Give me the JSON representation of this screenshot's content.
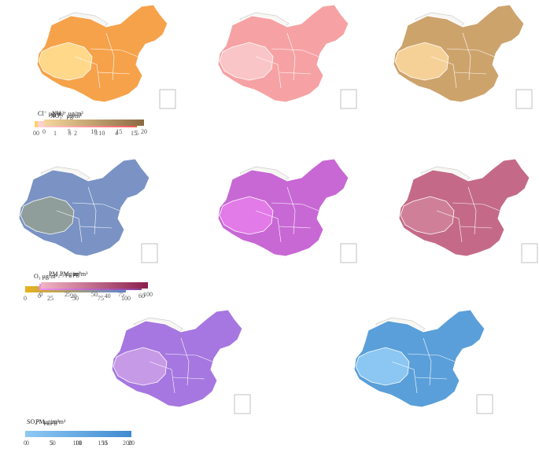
{
  "panels": [
    {
      "id": "cl",
      "title": "Cl⁻ μg/m³",
      "gradient": [
        "#ffd36e",
        "#f06421"
      ],
      "fill": "#f6a24a",
      "west": "#ffd88a",
      "ticks": [
        "0",
        "1",
        "2",
        "3",
        "4",
        "5"
      ]
    },
    {
      "id": "nh4",
      "title": "NH₄⁺ μg/m³",
      "gradient": [
        "#ffd4d4",
        "#f25a5e"
      ],
      "fill": "#f6a2a4",
      "west": "#fac5c6",
      "ticks": [
        "0",
        "5",
        "10",
        "15"
      ]
    },
    {
      "id": "no3",
      "title": "NO₃⁻ μg/m³",
      "gradient": [
        "#f5d79a",
        "#8b6a44"
      ],
      "fill": "#cda36c",
      "west": "#f5d198",
      "ticks": [
        "0",
        "5",
        "10",
        "15",
        "20"
      ]
    },
    {
      "id": "o3",
      "title": "O₃ μg/m³",
      "gradient": [
        "#e8b31c",
        "#5e87d8"
      ],
      "fill": "#7a93c4",
      "west": "#8f9e9a",
      "ticks": [
        "0",
        "25",
        "50",
        "75",
        "100"
      ]
    },
    {
      "id": "pm1",
      "title": "PM₁ μg/m³",
      "gradient": [
        "#f08ef5",
        "#8a3e9a"
      ],
      "fill": "#c868d4",
      "west": "#e27ae8",
      "ticks": [
        "0",
        "20",
        "40",
        "60"
      ]
    },
    {
      "id": "pm25",
      "title": "PM₂.₅ μg/m³",
      "gradient": [
        "#f3b5c6",
        "#8a1e4e"
      ],
      "fill": "#c46a88",
      "west": "#cf8098",
      "ticks": [
        "0",
        "25",
        "50",
        "75",
        "100"
      ]
    },
    {
      "id": "pm10",
      "title": "PM₁₀ μg/m³",
      "gradient": [
        "#e6b6f5",
        "#6b4ad6"
      ],
      "fill": "#a677e0",
      "west": "#c79ae8",
      "ticks": [
        "0",
        "50",
        "100",
        "150",
        "200"
      ]
    },
    {
      "id": "so4",
      "title": "SO₄²⁻ μg/m³",
      "gradient": [
        "#8fc9f5",
        "#3f8ad0"
      ],
      "fill": "#5a9fd9",
      "west": "#8cc6f2",
      "ticks": [
        "0",
        "5",
        "10",
        "15",
        "20"
      ]
    }
  ]
}
